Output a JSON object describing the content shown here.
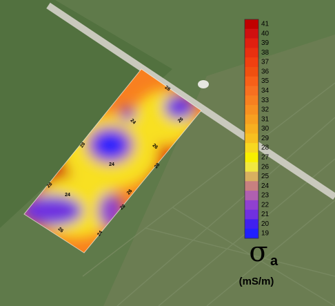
{
  "legend": {
    "ticks": [
      41,
      40,
      39,
      38,
      37,
      36,
      35,
      34,
      33,
      32,
      31,
      30,
      29,
      28,
      27,
      26,
      25,
      24,
      23,
      22,
      21,
      20,
      19
    ],
    "colors": [
      "#c00000",
      "#d01010",
      "#e02010",
      "#e83010",
      "#f04010",
      "#f05010",
      "#f86018",
      "#f87020",
      "#f88020",
      "#f89020",
      "#f8a020",
      "#f8b020",
      "#f8c020",
      "#f8d820",
      "#f8f000",
      "#f0e840",
      "#d8b060",
      "#c88080",
      "#b060b0",
      "#9040d0",
      "#7030e0",
      "#4020f0",
      "#2020ff"
    ],
    "symbol": "σ",
    "subscript": "a",
    "units": "(mS/m)"
  },
  "contour_labels": [
    "28",
    "24",
    "26",
    "28",
    "26",
    "24",
    "28",
    "24",
    "26",
    "28",
    "26",
    "24",
    "28"
  ]
}
